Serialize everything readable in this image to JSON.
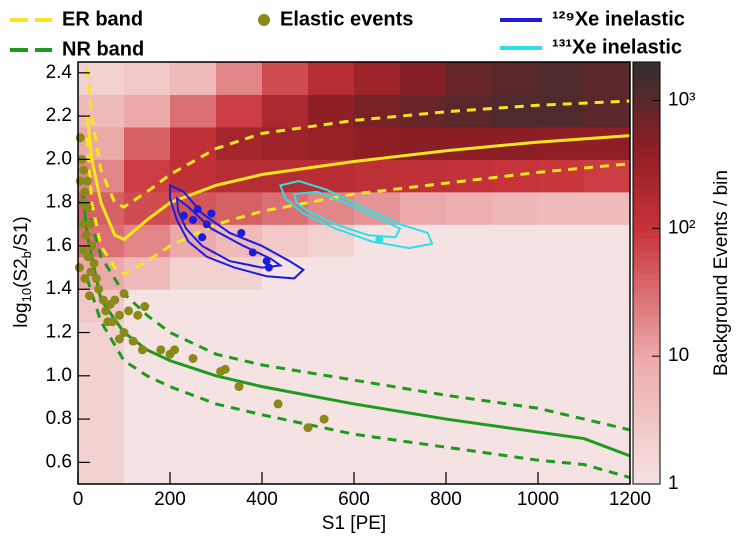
{
  "chart_data": {
    "type": "heatmap",
    "x_label": "S1 [PE]",
    "y_label": [
      "log",
      "10",
      "(S2",
      "b",
      "/S1)"
    ],
    "z_label": "Background Events / bin",
    "xlim": [
      0,
      1200
    ],
    "xticks": [
      0,
      200,
      400,
      600,
      800,
      1000,
      1200
    ],
    "ylim": [
      0.5,
      2.45
    ],
    "yticks": [
      0.6,
      0.8,
      {
        "value": 1,
        "label": "1.0"
      },
      1.2,
      1.4,
      1.6,
      1.8,
      {
        "value": 2,
        "label": "2.0"
      },
      2.2,
      2.4
    ],
    "zlim": [
      1,
      2000
    ],
    "zticks": [
      1,
      10,
      {
        "value": 100,
        "label": "10²"
      },
      {
        "value": 1000,
        "label": "10³"
      }
    ],
    "log_z": true,
    "x_bins": [
      0,
      100,
      200,
      300,
      400,
      500,
      600,
      700,
      800,
      900,
      1000,
      1100,
      1200
    ],
    "y_bins": [
      0.5,
      0.65,
      0.8,
      0.95,
      1.1,
      1.25,
      1.4,
      1.55,
      1.7,
      1.85,
      2.0,
      2.15,
      2.3,
      2.45
    ],
    "z": [
      [
        2,
        1,
        1,
        1,
        1,
        1,
        1,
        1,
        1,
        1,
        1,
        1
      ],
      [
        2,
        1,
        1,
        1,
        1,
        1,
        1,
        1,
        1,
        1,
        1,
        1
      ],
      [
        2,
        1,
        1,
        1,
        1,
        1,
        1,
        1,
        1,
        1,
        1,
        1
      ],
      [
        2,
        1,
        1,
        1,
        1,
        1,
        1,
        1,
        1,
        1,
        1,
        1
      ],
      [
        2,
        1,
        1,
        1,
        1,
        1,
        1,
        1,
        1,
        1,
        1,
        1
      ],
      [
        3,
        1,
        1,
        1,
        1,
        1,
        1,
        1,
        1,
        1,
        1,
        1
      ],
      [
        10,
        5,
        2,
        2,
        1,
        1,
        1,
        1,
        1,
        1,
        1,
        1
      ],
      [
        30,
        20,
        10,
        5,
        3,
        2,
        1,
        1,
        1,
        1,
        1,
        1
      ],
      [
        40,
        60,
        50,
        40,
        30,
        20,
        15,
        10,
        8,
        6,
        5,
        5
      ],
      [
        20,
        80,
        120,
        150,
        150,
        140,
        130,
        120,
        110,
        100,
        90,
        80
      ],
      [
        10,
        40,
        120,
        250,
        300,
        350,
        400,
        450,
        450,
        450,
        400,
        400
      ],
      [
        5,
        10,
        30,
        80,
        200,
        400,
        600,
        800,
        1000,
        1200,
        1200,
        1000
      ],
      [
        2,
        3,
        5,
        20,
        60,
        150,
        300,
        500,
        800,
        1000,
        1200,
        1000
      ]
    ],
    "bands": [
      {
        "name": "ER band",
        "color": "#f8e61c",
        "x": [
          20,
          30,
          50,
          80,
          100,
          150,
          200,
          300,
          400,
          600,
          800,
          1000,
          1200
        ],
        "median": [
          2.2,
          2.0,
          1.8,
          1.65,
          1.63,
          1.72,
          1.8,
          1.88,
          1.93,
          1.99,
          2.04,
          2.08,
          2.11
        ],
        "upper": [
          2.42,
          2.2,
          1.95,
          1.8,
          1.78,
          1.85,
          1.93,
          2.05,
          2.12,
          2.18,
          2.22,
          2.25,
          2.27
        ],
        "lower": [
          2.1,
          1.8,
          1.6,
          1.5,
          1.47,
          1.53,
          1.6,
          1.7,
          1.76,
          1.84,
          1.89,
          1.94,
          1.98
        ]
      },
      {
        "name": "NR band",
        "color": "#1e9a1e",
        "x": [
          10,
          20,
          30,
          50,
          100,
          150,
          200,
          300,
          400,
          600,
          800,
          1000,
          1100,
          1200
        ],
        "median": [
          1.85,
          1.65,
          1.55,
          1.35,
          1.2,
          1.12,
          1.07,
          1.0,
          0.95,
          0.87,
          0.8,
          0.74,
          0.71,
          0.63
        ],
        "upper": [
          null,
          1.8,
          1.7,
          1.55,
          1.38,
          1.28,
          1.2,
          1.1,
          1.05,
          0.98,
          0.91,
          0.85,
          0.8,
          0.75
        ],
        "lower": [
          null,
          1.45,
          1.38,
          1.25,
          1.07,
          1.0,
          0.95,
          0.87,
          0.82,
          0.73,
          0.67,
          0.61,
          0.59,
          0.53
        ]
      }
    ],
    "elastic": {
      "name": "Elastic events",
      "color": "#8a8a1a",
      "x": [
        5,
        8,
        12,
        15,
        10,
        20,
        25,
        18,
        30,
        12,
        22,
        35,
        28,
        40,
        15,
        45,
        25,
        55,
        60,
        70,
        80,
        100,
        90,
        110,
        130,
        145,
        65,
        75,
        100,
        120,
        140,
        90,
        180,
        200,
        210,
        250,
        310,
        320,
        350,
        435,
        500,
        535,
        5,
        8,
        3,
        20
      ],
      "y": [
        2.1,
        2.0,
        1.95,
        1.85,
        1.8,
        1.78,
        1.7,
        1.65,
        1.6,
        1.58,
        1.55,
        1.52,
        1.48,
        1.45,
        1.45,
        1.4,
        1.37,
        1.35,
        1.3,
        1.33,
        1.35,
        1.38,
        1.28,
        1.3,
        1.28,
        1.32,
        1.25,
        1.25,
        1.2,
        1.16,
        1.12,
        1.17,
        1.12,
        1.1,
        1.12,
        1.08,
        1.02,
        1.03,
        0.95,
        0.87,
        0.76,
        0.8,
        1.9,
        1.7,
        1.5,
        1.9
      ]
    },
    "inelastic": [
      {
        "name": "¹²⁹Xe inelastic",
        "color": "#1c1ce0",
        "x": [
          230,
          250,
          280,
          270,
          355,
          380,
          410,
          415,
          260,
          290
        ],
        "y": [
          1.74,
          1.72,
          1.7,
          1.64,
          1.66,
          1.57,
          1.53,
          1.5,
          1.77,
          1.75
        ],
        "contours": [
          {
            "x": [
              200,
              230,
              270,
              330,
              400,
              460,
              490,
              470,
              410,
              340,
              280,
              240,
              215,
              200
            ],
            "y": [
              1.88,
              1.85,
              1.75,
              1.66,
              1.6,
              1.53,
              1.49,
              1.45,
              1.46,
              1.5,
              1.55,
              1.62,
              1.72,
              1.82
            ]
          },
          {
            "x": [
              215,
              240,
              290,
              360,
              420,
              440,
              400,
              330,
              270,
              235,
              218
            ],
            "y": [
              1.82,
              1.78,
              1.68,
              1.6,
              1.54,
              1.51,
              1.5,
              1.53,
              1.6,
              1.68,
              1.76
            ]
          }
        ]
      },
      {
        "name": "¹³¹Xe inelastic",
        "color": "#2ee0e6",
        "x": [
          655
        ],
        "y": [
          1.63
        ],
        "contours": [
          {
            "x": [
              440,
              480,
              540,
              620,
              700,
              760,
              770,
              720,
              640,
              560,
              490,
              450
            ],
            "y": [
              1.88,
              1.9,
              1.86,
              1.78,
              1.7,
              1.66,
              1.61,
              1.59,
              1.62,
              1.68,
              1.75,
              1.82
            ]
          },
          {
            "x": [
              470,
              520,
              580,
              650,
              700,
              690,
              630,
              560,
              500,
              475
            ],
            "y": [
              1.84,
              1.85,
              1.8,
              1.73,
              1.68,
              1.64,
              1.65,
              1.7,
              1.76,
              1.8
            ]
          }
        ]
      }
    ]
  }
}
